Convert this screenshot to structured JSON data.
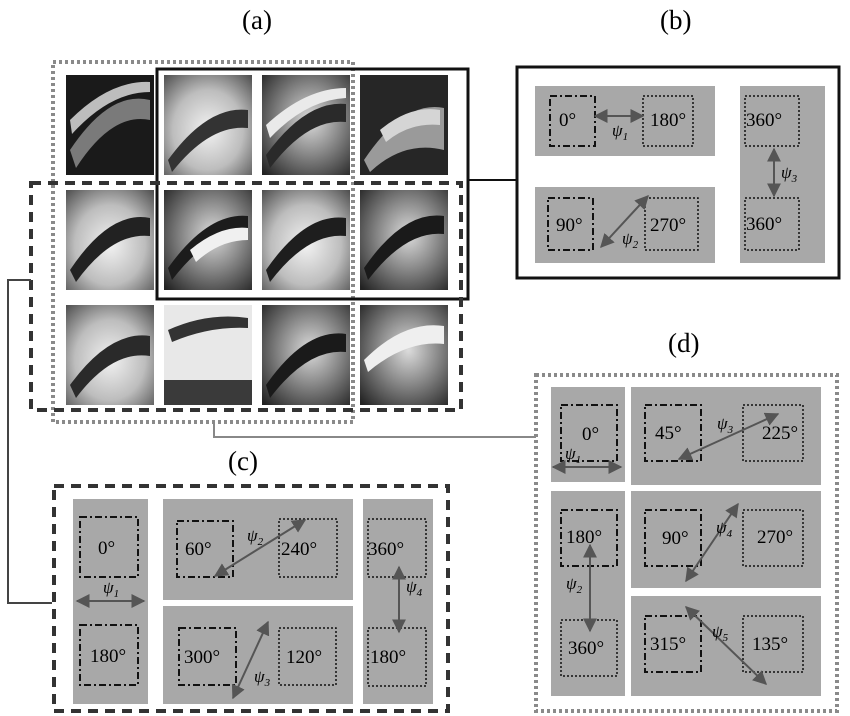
{
  "panels": {
    "a": "(a)",
    "b": "(b)",
    "c": "(c)",
    "d": "(d)"
  },
  "panel_b": {
    "boxes": [
      "0°",
      "180°",
      "90°",
      "270°",
      "360°",
      "360°"
    ],
    "psi": [
      {
        "sym": "ψ",
        "sub": "1"
      },
      {
        "sym": "ψ",
        "sub": "2"
      },
      {
        "sym": "ψ",
        "sub": "3"
      }
    ]
  },
  "panel_c": {
    "boxes": [
      "0°",
      "180°",
      "60°",
      "240°",
      "300°",
      "120°",
      "360°",
      "180°"
    ],
    "psi": [
      {
        "sym": "ψ",
        "sub": "1"
      },
      {
        "sym": "ψ",
        "sub": "2"
      },
      {
        "sym": "ψ",
        "sub": "3"
      },
      {
        "sym": "ψ",
        "sub": "4"
      }
    ]
  },
  "panel_d": {
    "boxes": [
      "0°",
      "180°",
      "360°",
      "45°",
      "225°",
      "90°",
      "270°",
      "315°",
      "135°"
    ],
    "psi": [
      {
        "sym": "ψ",
        "sub": "1"
      },
      {
        "sym": "ψ",
        "sub": "2"
      },
      {
        "sym": "ψ",
        "sub": "3"
      },
      {
        "sym": "ψ",
        "sub": "4"
      },
      {
        "sym": "ψ",
        "sub": "5"
      }
    ]
  },
  "colors": {
    "panel_fill": "#a8a8a8",
    "arrow": "#555555",
    "frame": "#111111",
    "dotted_frame": "#8a8a8a"
  },
  "image_grid": {
    "rows": 3,
    "cols": 4
  }
}
